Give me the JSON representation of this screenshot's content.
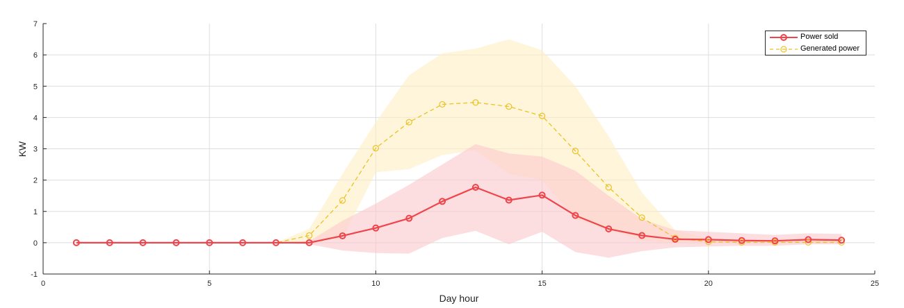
{
  "chart_data": {
    "type": "line",
    "xlabel": "Day hour",
    "ylabel": "KW",
    "xlim": [
      0,
      25
    ],
    "ylim": [
      -1,
      7
    ],
    "xticks": [
      0,
      5,
      10,
      15,
      20,
      25
    ],
    "yticks": [
      -1,
      0,
      1,
      2,
      3,
      4,
      5,
      6,
      7
    ],
    "grid": true,
    "legend_position": "top-right",
    "x": [
      1,
      2,
      3,
      4,
      5,
      6,
      7,
      8,
      9,
      10,
      11,
      12,
      13,
      14,
      15,
      16,
      17,
      18,
      19,
      20,
      21,
      22,
      23,
      24
    ],
    "series": [
      {
        "name": "Power sold",
        "color": "#f0434a",
        "line_style": "solid",
        "marker": "circle",
        "values": [
          0,
          0,
          0,
          0,
          0,
          0,
          0,
          0,
          0.22,
          0.47,
          0.78,
          1.32,
          1.77,
          1.36,
          1.52,
          0.87,
          0.44,
          0.23,
          0.11,
          0.1,
          0.07,
          0.06,
          0.1,
          0.08
        ],
        "band_lower": [
          0,
          0,
          0,
          0,
          0,
          0,
          0,
          -0.05,
          -0.25,
          -0.33,
          -0.35,
          0.15,
          0.38,
          -0.05,
          0.35,
          -0.3,
          -0.48,
          -0.27,
          -0.15,
          -0.12,
          -0.1,
          -0.1,
          -0.05,
          -0.05
        ],
        "band_upper": [
          0,
          0,
          0,
          0,
          0,
          0,
          0,
          0.05,
          0.7,
          1.25,
          1.85,
          2.5,
          3.15,
          2.85,
          2.75,
          2.3,
          1.5,
          0.75,
          0.4,
          0.35,
          0.3,
          0.25,
          0.3,
          0.28
        ],
        "band_color": "#fcc8cc"
      },
      {
        "name": "Generated power",
        "color": "#edc122",
        "line_style": "dashed",
        "marker": "circle-open",
        "values": [
          0,
          0,
          0,
          0,
          0,
          0,
          0,
          0.23,
          1.35,
          3.02,
          3.85,
          4.42,
          4.48,
          4.35,
          4.05,
          2.93,
          1.77,
          0.8,
          0.15,
          0.03,
          0.01,
          0.01,
          0.01,
          0.01
        ],
        "band_lower": [
          0,
          0,
          0,
          0,
          0,
          0,
          0,
          0.05,
          0.15,
          2.25,
          2.35,
          2.8,
          2.95,
          2.2,
          2.0,
          0.75,
          0.4,
          0.05,
          0,
          0,
          0,
          0,
          0,
          0
        ],
        "band_upper": [
          0,
          0,
          0,
          0,
          0,
          0,
          0,
          0.45,
          2.2,
          3.85,
          5.35,
          6.05,
          6.2,
          6.5,
          6.15,
          5.0,
          3.4,
          1.6,
          0.4,
          0.15,
          0.1,
          0.08,
          0.08,
          0.08
        ],
        "band_color": "#fdeec3"
      }
    ]
  }
}
